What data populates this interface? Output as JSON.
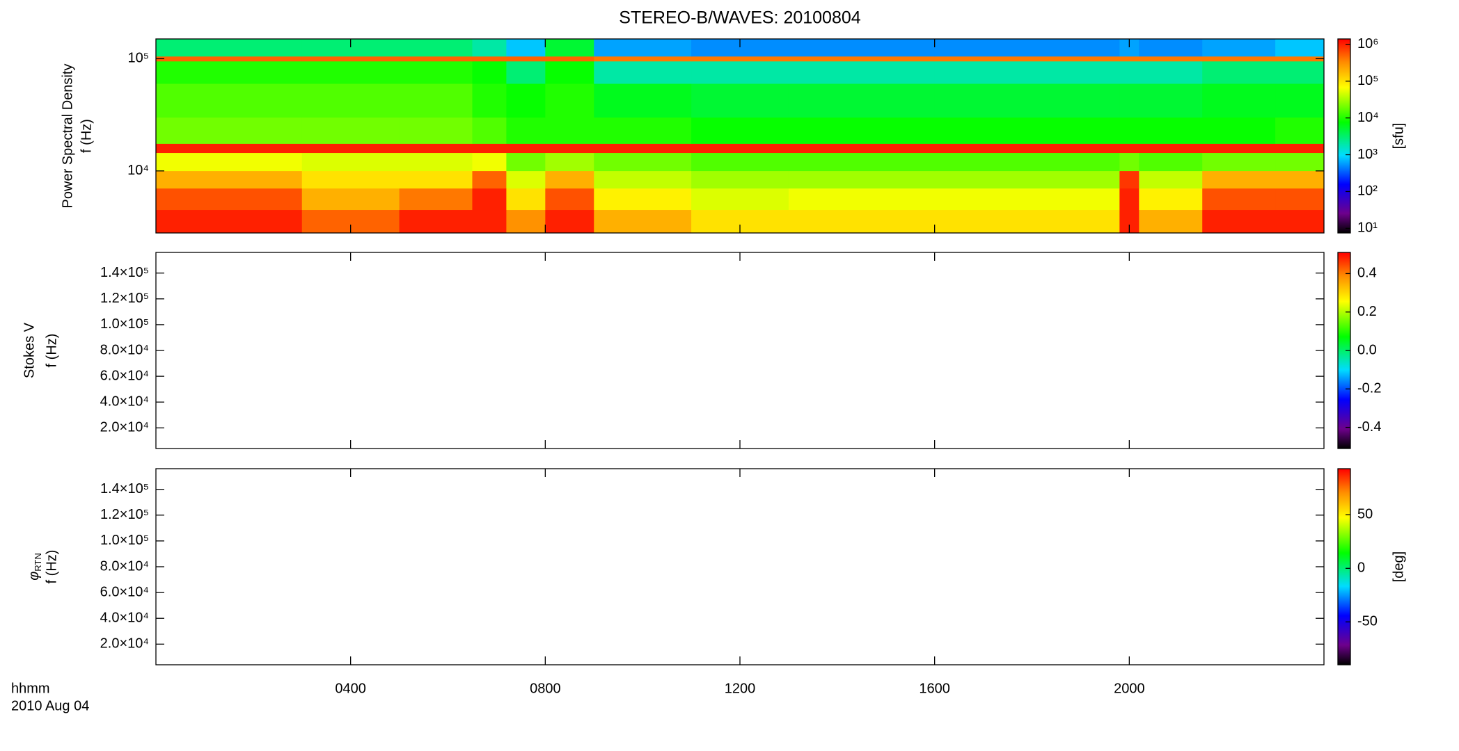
{
  "chart_data": [
    {
      "type": "heatmap",
      "title": "STEREO-B/WAVES: 20100804",
      "ylabel": "Power Spectral Density",
      "ylabel2": "f (Hz)",
      "xlim": [
        0,
        24
      ],
      "ylim": [
        2800,
        150000
      ],
      "ylog": true,
      "yticks": [
        {
          "value": 10000,
          "label": "10⁴"
        },
        {
          "value": 100000,
          "label": "10⁵"
        }
      ],
      "x_edges": [
        0,
        3,
        5,
        6.5,
        7.2,
        8,
        9,
        11,
        13,
        16,
        19.8,
        20.2,
        21.5,
        23,
        24
      ],
      "y_edges": [
        2800,
        4500,
        7000,
        10000,
        14500,
        17500,
        30000,
        60000,
        95000,
        105000,
        150000
      ],
      "z": [
        [
          1000000,
          500000,
          1000000,
          1000000,
          300000,
          1000000,
          200000,
          100000,
          100000,
          100000,
          1000000,
          200000,
          1000000,
          1000000
        ],
        [
          600000,
          200000,
          400000,
          1000000,
          100000,
          600000,
          80000,
          50000,
          60000,
          60000,
          1000000,
          80000,
          600000,
          600000
        ],
        [
          200000,
          100000,
          100000,
          500000,
          50000,
          200000,
          40000,
          30000,
          30000,
          30000,
          800000,
          40000,
          200000,
          200000
        ],
        [
          60000,
          50000,
          50000,
          60000,
          20000,
          30000,
          20000,
          15000,
          15000,
          15000,
          20000,
          15000,
          20000,
          20000
        ],
        [
          1000000,
          1000000,
          1000000,
          1000000,
          1000000,
          1000000,
          1000000,
          1000000,
          1000000,
          1000000,
          1000000,
          1000000,
          1000000,
          1000000
        ],
        [
          20000,
          20000,
          20000,
          15000,
          10000,
          10000,
          10000,
          8000,
          8000,
          8000,
          8000,
          8000,
          8000,
          10000
        ],
        [
          15000,
          15000,
          15000,
          10000,
          8000,
          10000,
          6000,
          5000,
          5000,
          5000,
          5000,
          5000,
          6000,
          6000
        ],
        [
          10000,
          10000,
          10000,
          8000,
          3000,
          8000,
          2000,
          2000,
          2000,
          2000,
          2000,
          2000,
          3000,
          3000
        ],
        [
          500000,
          500000,
          500000,
          500000,
          500000,
          500000,
          400000,
          400000,
          400000,
          400000,
          400000,
          400000,
          400000,
          400000
        ],
        [
          3000,
          3000,
          3000,
          2000,
          800,
          5000,
          600,
          500,
          500,
          500,
          600,
          500,
          600,
          800
        ]
      ],
      "colorbar": {
        "lim": [
          7.5,
          1400000
        ],
        "log": true,
        "label": "[sfu]",
        "ticks": [
          {
            "value": 10,
            "label": "10¹"
          },
          {
            "value": 100,
            "label": "10²"
          },
          {
            "value": 1000,
            "label": "10³"
          },
          {
            "value": 10000,
            "label": "10⁴"
          },
          {
            "value": 100000,
            "label": "10⁵"
          },
          {
            "value": 1000000,
            "label": "10⁶"
          }
        ]
      }
    },
    {
      "type": "heatmap",
      "ylabel": "Stokes V",
      "ylabel2": "f (Hz)",
      "xlim": [
        0,
        24
      ],
      "ylim": [
        4000,
        156000
      ],
      "yticks": [
        {
          "value": 20000,
          "label": "2.0×10⁴"
        },
        {
          "value": 40000,
          "label": "4.0×10⁴"
        },
        {
          "value": 60000,
          "label": "6.0×10⁴"
        },
        {
          "value": 80000,
          "label": "8.0×10⁴"
        },
        {
          "value": 100000,
          "label": "1.0×10⁵"
        },
        {
          "value": 120000,
          "label": "1.2×10⁵"
        },
        {
          "value": 140000,
          "label": "1.4×10⁵"
        }
      ],
      "colorbar": {
        "lim": [
          -0.51,
          0.51
        ],
        "ticks": [
          -0.4,
          -0.2,
          {
            "value": 0,
            "label": "0.0"
          },
          0.2,
          0.4
        ]
      }
    },
    {
      "type": "heatmap",
      "ylabel": {
        "text": "φ",
        "sub": "RTN"
      },
      "ylabel2": "f (Hz)",
      "xlim": [
        0,
        24
      ],
      "ylim": [
        4000,
        156000
      ],
      "yticks": [
        {
          "value": 20000,
          "label": "2.0×10⁴"
        },
        {
          "value": 40000,
          "label": "4.0×10⁴"
        },
        {
          "value": 60000,
          "label": "6.0×10⁴"
        },
        {
          "value": 80000,
          "label": "8.0×10⁴"
        },
        {
          "value": 100000,
          "label": "1.0×10⁵"
        },
        {
          "value": 120000,
          "label": "1.2×10⁵"
        },
        {
          "value": 140000,
          "label": "1.4×10⁵"
        }
      ],
      "xticks": [
        {
          "value": 4,
          "label": "0400"
        },
        {
          "value": 8,
          "label": "0800"
        },
        {
          "value": 12,
          "label": "1200"
        },
        {
          "value": 16,
          "label": "1600"
        },
        {
          "value": 20,
          "label": "2000"
        }
      ],
      "xlabel": "hhmm",
      "date": "2010 Aug 04",
      "colorbar": {
        "lim": [
          -90,
          93
        ],
        "label": "[deg]",
        "ticks": [
          -50,
          0,
          50
        ]
      }
    }
  ]
}
